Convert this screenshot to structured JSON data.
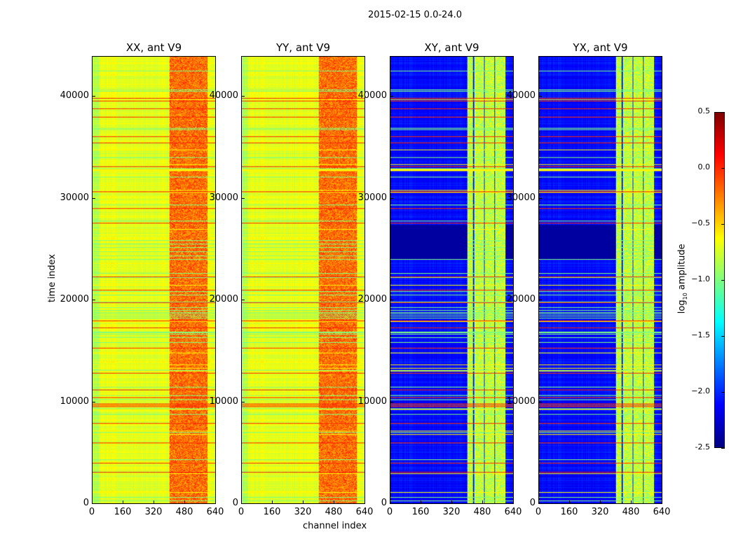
{
  "chart_data": {
    "type": "heatmap",
    "title": "2015-02-15 0.0-24.0",
    "xlabel": "channel index",
    "ylabel": "time index",
    "xlim": [
      0,
      640
    ],
    "ylim": [
      0,
      44000
    ],
    "xticks": [
      0,
      160,
      320,
      480,
      640
    ],
    "yticks": [
      0,
      10000,
      20000,
      30000,
      40000
    ],
    "colormap": "jet",
    "colorbar": {
      "label": "log10 amplitude",
      "label_main": "log",
      "label_sub": "10",
      "label_rest": " amplitude",
      "range": [
        -2.5,
        0.5
      ],
      "ticks": [
        "-2.5",
        "−2.0",
        "−1.5",
        "−1.0",
        "−0.5",
        "0.0",
        "0.5"
      ],
      "tick_values": [
        -2.5,
        -2.0,
        -1.5,
        -1.0,
        -0.5,
        0.0,
        0.5
      ]
    },
    "panels": [
      {
        "title": "XX, ant V9",
        "base_level": -0.7,
        "band_channels": [
          400,
          600
        ],
        "band_level": -0.2
      },
      {
        "title": "YY, ant V9",
        "base_level": -0.7,
        "band_channels": [
          400,
          600
        ],
        "band_level": -0.2
      },
      {
        "title": "XY, ant V9",
        "base_level": -2.1,
        "band_channels": [
          400,
          600
        ],
        "band_level": -0.8
      },
      {
        "title": "YX, ant V9",
        "base_level": -2.1,
        "band_channels": [
          400,
          600
        ],
        "band_level": -0.8
      }
    ]
  }
}
